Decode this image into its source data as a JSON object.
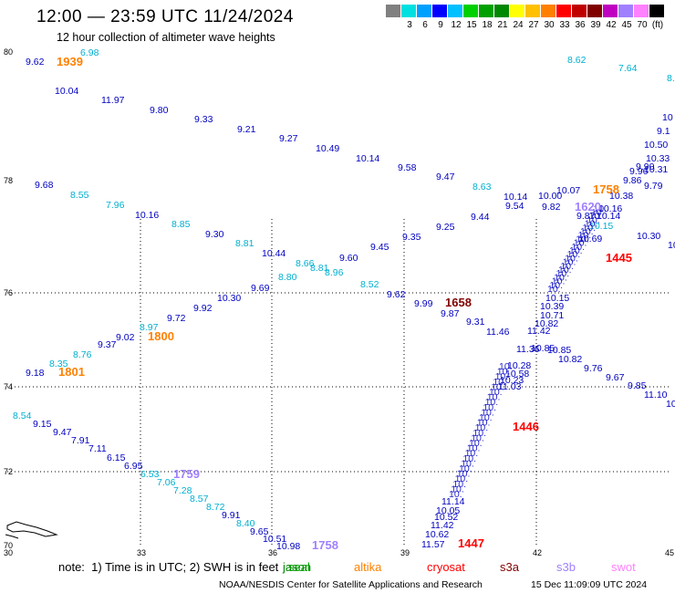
{
  "header": {
    "title": "12:00 — 23:59 UTC 11/24/2024",
    "subtitle": "12 hour collection of altimeter wave heights"
  },
  "scale": {
    "unit": "(ft)",
    "colors": [
      "#808080",
      "#00e0e0",
      "#00a0ff",
      "#0000ff",
      "#00c0ff",
      "#00d000",
      "#00a000",
      "#008800",
      "#ffff00",
      "#ffc000",
      "#ff8000",
      "#ff0000",
      "#c00000",
      "#800000",
      "#c000c0",
      "#a080ff",
      "#ff80ff",
      "#000000"
    ],
    "labels": [
      "3",
      "6",
      "9",
      "12",
      "15",
      "18",
      "21",
      "24",
      "27",
      "30",
      "33",
      "36",
      "39",
      "42",
      "45",
      "70"
    ]
  },
  "axes": {
    "lon_ticks": [
      "30",
      "33",
      "36",
      "39",
      "42",
      "45"
    ],
    "lat_ticks": [
      "80",
      "78",
      "76",
      "74",
      "72",
      "70"
    ]
  },
  "satellites": {
    "jason": {
      "name": "jason",
      "color": "#008800"
    },
    "seal": {
      "name": "seal",
      "color": "#00a000"
    },
    "altika": {
      "name": "altika",
      "color": "#ff8000"
    },
    "cryosat": {
      "name": "cryosat",
      "color": "#ff0000"
    },
    "s3a": {
      "name": "s3a",
      "color": "#800000"
    },
    "s3b": {
      "name": "s3b",
      "color": "#a080ff"
    },
    "swot": {
      "name": "swot",
      "color": "#ff80ff"
    }
  },
  "time_labels": [
    {
      "text": "1939",
      "sat": "altika"
    },
    {
      "text": "1800",
      "sat": "altika"
    },
    {
      "text": "1801",
      "sat": "altika"
    },
    {
      "text": "1759",
      "sat": "s3b"
    },
    {
      "text": "1758",
      "sat": "s3b"
    },
    {
      "text": "1658",
      "sat": "s3a"
    },
    {
      "text": "1620",
      "sat": "s3b"
    },
    {
      "text": "1758",
      "sat": "altika"
    },
    {
      "text": "1445",
      "sat": "cryosat"
    },
    {
      "text": "1446",
      "sat": "cryosat"
    },
    {
      "text": "1447",
      "sat": "cryosat"
    }
  ],
  "wave_heights_ft": [
    "9.62",
    "6.98",
    "10.04",
    "11.97",
    "9.80",
    "9.33",
    "9.21",
    "9.27",
    "10.49",
    "10.14",
    "9.58",
    "9.47",
    "8.62",
    "7.64",
    "8.",
    "9.68",
    "8.55",
    "7.96",
    "10.16",
    "8.85",
    "9.30",
    "8.81",
    "10.44",
    "8.66",
    "8.81",
    "8.96",
    "9.60",
    "9.45",
    "9.35",
    "9.25",
    "9.44",
    "8.63",
    "10.14",
    "9.54",
    "10.00",
    "9.82",
    "10.07",
    "9.87",
    "9.86",
    "10.38",
    "9.79",
    "9.96",
    "9.90",
    "10.31",
    "10.33",
    "10.50",
    "9.1",
    "10",
    "8.80",
    "9.69",
    "8.52",
    "10.30",
    "9.92",
    "9.62",
    "9.99",
    "9.87",
    "9.31",
    "11.46",
    "9.72",
    "8.97",
    "9.02",
    "9.37",
    "8.76",
    "8.35",
    "9.18",
    "8.54",
    "9.15",
    "9.47",
    "7.91",
    "7.11",
    "6.15",
    "6.95",
    "6.53",
    "7.06",
    "7.28",
    "8.57",
    "8.72",
    "9.91",
    "8.40",
    "9.65",
    "10.51",
    "10.98",
    "11.57",
    "10.62",
    "11.42",
    "10.05",
    "10.52",
    "11.14",
    "10.85",
    "10.82",
    "9.76",
    "9.67",
    "9.85",
    "11.10",
    "10",
    "10.30",
    "10",
    "10.15",
    "10.14",
    "10.16",
    "10.69",
    "10.39",
    "10.15",
    "10.82",
    "10.71",
    "11.42",
    "11.36",
    "10.85",
    "10.28",
    "10.58",
    "10.23",
    "11.03"
  ],
  "footer": {
    "note": "note:  1) Time is in UTC; 2) SWH is in feet",
    "credit": "NOAA/NESDIS Center for Satellite Applications and Research",
    "generated": "15 Dec 11:09:09 UTC 2024"
  }
}
